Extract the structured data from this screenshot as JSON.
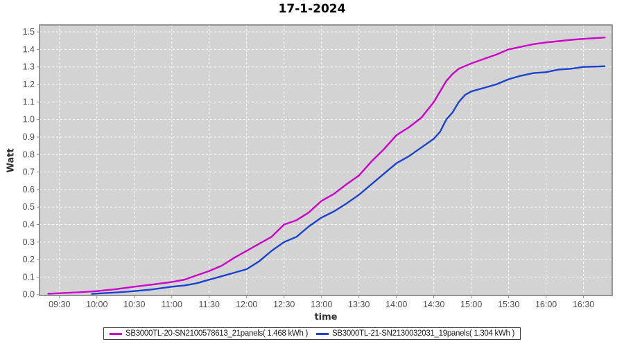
{
  "chart": {
    "title": "17-1-2024",
    "xlabel": "time",
    "ylabel": "Watt"
  },
  "chart_data": {
    "type": "line",
    "title": "17-1-2024",
    "xlabel": "time",
    "ylabel": "Watt",
    "grid": true,
    "grid_style": "white dashed on light-gray plot background",
    "plot_bg": "#d3d3d3",
    "grid_color": "#ffffff",
    "border_color": "#787878",
    "tick_label_color": "#4d4d4d",
    "legend_position": "bottom",
    "x_ticks": [
      "09:30",
      "10:00",
      "10:30",
      "11:00",
      "11:30",
      "12:00",
      "12:30",
      "13:00",
      "13:30",
      "14:00",
      "14:30",
      "15:00",
      "15:30",
      "16:00",
      "16:30"
    ],
    "y_ticks": [
      0.0,
      0.1,
      0.2,
      0.3,
      0.4,
      0.5,
      0.6,
      0.7,
      0.8,
      0.9,
      1.0,
      1.1,
      1.2,
      1.3,
      1.4,
      1.5
    ],
    "x_domain_minutes": [
      554,
      1013
    ],
    "y_domain": [
      -0.005,
      1.54
    ],
    "series": [
      {
        "name": "SB3000TL-20-SN2100578613_21panels( 1.468 kWh )",
        "color": "#cc00cc",
        "total_kwh": 1.468,
        "points": [
          [
            "09:21",
            0.005
          ],
          [
            "09:30",
            0.008
          ],
          [
            "09:45",
            0.013
          ],
          [
            "10:00",
            0.02
          ],
          [
            "10:15",
            0.031
          ],
          [
            "10:30",
            0.045
          ],
          [
            "10:45",
            0.058
          ],
          [
            "11:00",
            0.072
          ],
          [
            "11:10",
            0.085
          ],
          [
            "11:20",
            0.11
          ],
          [
            "11:30",
            0.135
          ],
          [
            "11:40",
            0.165
          ],
          [
            "11:50",
            0.21
          ],
          [
            "12:00",
            0.25
          ],
          [
            "12:10",
            0.29
          ],
          [
            "12:20",
            0.33
          ],
          [
            "12:30",
            0.4
          ],
          [
            "12:40",
            0.425
          ],
          [
            "12:50",
            0.47
          ],
          [
            "13:00",
            0.535
          ],
          [
            "13:10",
            0.575
          ],
          [
            "13:20",
            0.63
          ],
          [
            "13:30",
            0.68
          ],
          [
            "13:40",
            0.76
          ],
          [
            "13:50",
            0.83
          ],
          [
            "14:00",
            0.91
          ],
          [
            "14:10",
            0.955
          ],
          [
            "14:20",
            1.01
          ],
          [
            "14:30",
            1.1
          ],
          [
            "14:35",
            1.16
          ],
          [
            "14:40",
            1.22
          ],
          [
            "14:45",
            1.26
          ],
          [
            "14:50",
            1.29
          ],
          [
            "15:00",
            1.32
          ],
          [
            "15:10",
            1.345
          ],
          [
            "15:20",
            1.37
          ],
          [
            "15:30",
            1.4
          ],
          [
            "15:40",
            1.415
          ],
          [
            "15:50",
            1.43
          ],
          [
            "16:00",
            1.44
          ],
          [
            "16:10",
            1.447
          ],
          [
            "16:20",
            1.455
          ],
          [
            "16:30",
            1.46
          ],
          [
            "16:40",
            1.465
          ],
          [
            "16:47",
            1.468
          ]
        ]
      },
      {
        "name": "SB3000TL-21-SN2130032031_19panels( 1.304 kWh )",
        "color": "#1a42d0",
        "total_kwh": 1.304,
        "points": [
          [
            "09:56",
            0.004
          ],
          [
            "10:00",
            0.006
          ],
          [
            "10:15",
            0.012
          ],
          [
            "10:30",
            0.02
          ],
          [
            "10:45",
            0.03
          ],
          [
            "11:00",
            0.045
          ],
          [
            "11:10",
            0.052
          ],
          [
            "11:20",
            0.065
          ],
          [
            "11:30",
            0.085
          ],
          [
            "11:40",
            0.105
          ],
          [
            "11:50",
            0.125
          ],
          [
            "12:00",
            0.145
          ],
          [
            "12:10",
            0.19
          ],
          [
            "12:20",
            0.25
          ],
          [
            "12:30",
            0.3
          ],
          [
            "12:40",
            0.33
          ],
          [
            "12:50",
            0.39
          ],
          [
            "13:00",
            0.44
          ],
          [
            "13:10",
            0.475
          ],
          [
            "13:20",
            0.52
          ],
          [
            "13:30",
            0.57
          ],
          [
            "13:40",
            0.63
          ],
          [
            "13:50",
            0.69
          ],
          [
            "14:00",
            0.75
          ],
          [
            "14:10",
            0.79
          ],
          [
            "14:20",
            0.84
          ],
          [
            "14:30",
            0.89
          ],
          [
            "14:35",
            0.93
          ],
          [
            "14:40",
            1.0
          ],
          [
            "14:45",
            1.04
          ],
          [
            "14:50",
            1.1
          ],
          [
            "14:55",
            1.14
          ],
          [
            "15:00",
            1.16
          ],
          [
            "15:10",
            1.18
          ],
          [
            "15:20",
            1.2
          ],
          [
            "15:30",
            1.23
          ],
          [
            "15:40",
            1.25
          ],
          [
            "15:50",
            1.265
          ],
          [
            "16:00",
            1.27
          ],
          [
            "16:10",
            1.285
          ],
          [
            "16:20",
            1.29
          ],
          [
            "16:30",
            1.3
          ],
          [
            "16:40",
            1.302
          ],
          [
            "16:47",
            1.304
          ]
        ]
      }
    ]
  }
}
